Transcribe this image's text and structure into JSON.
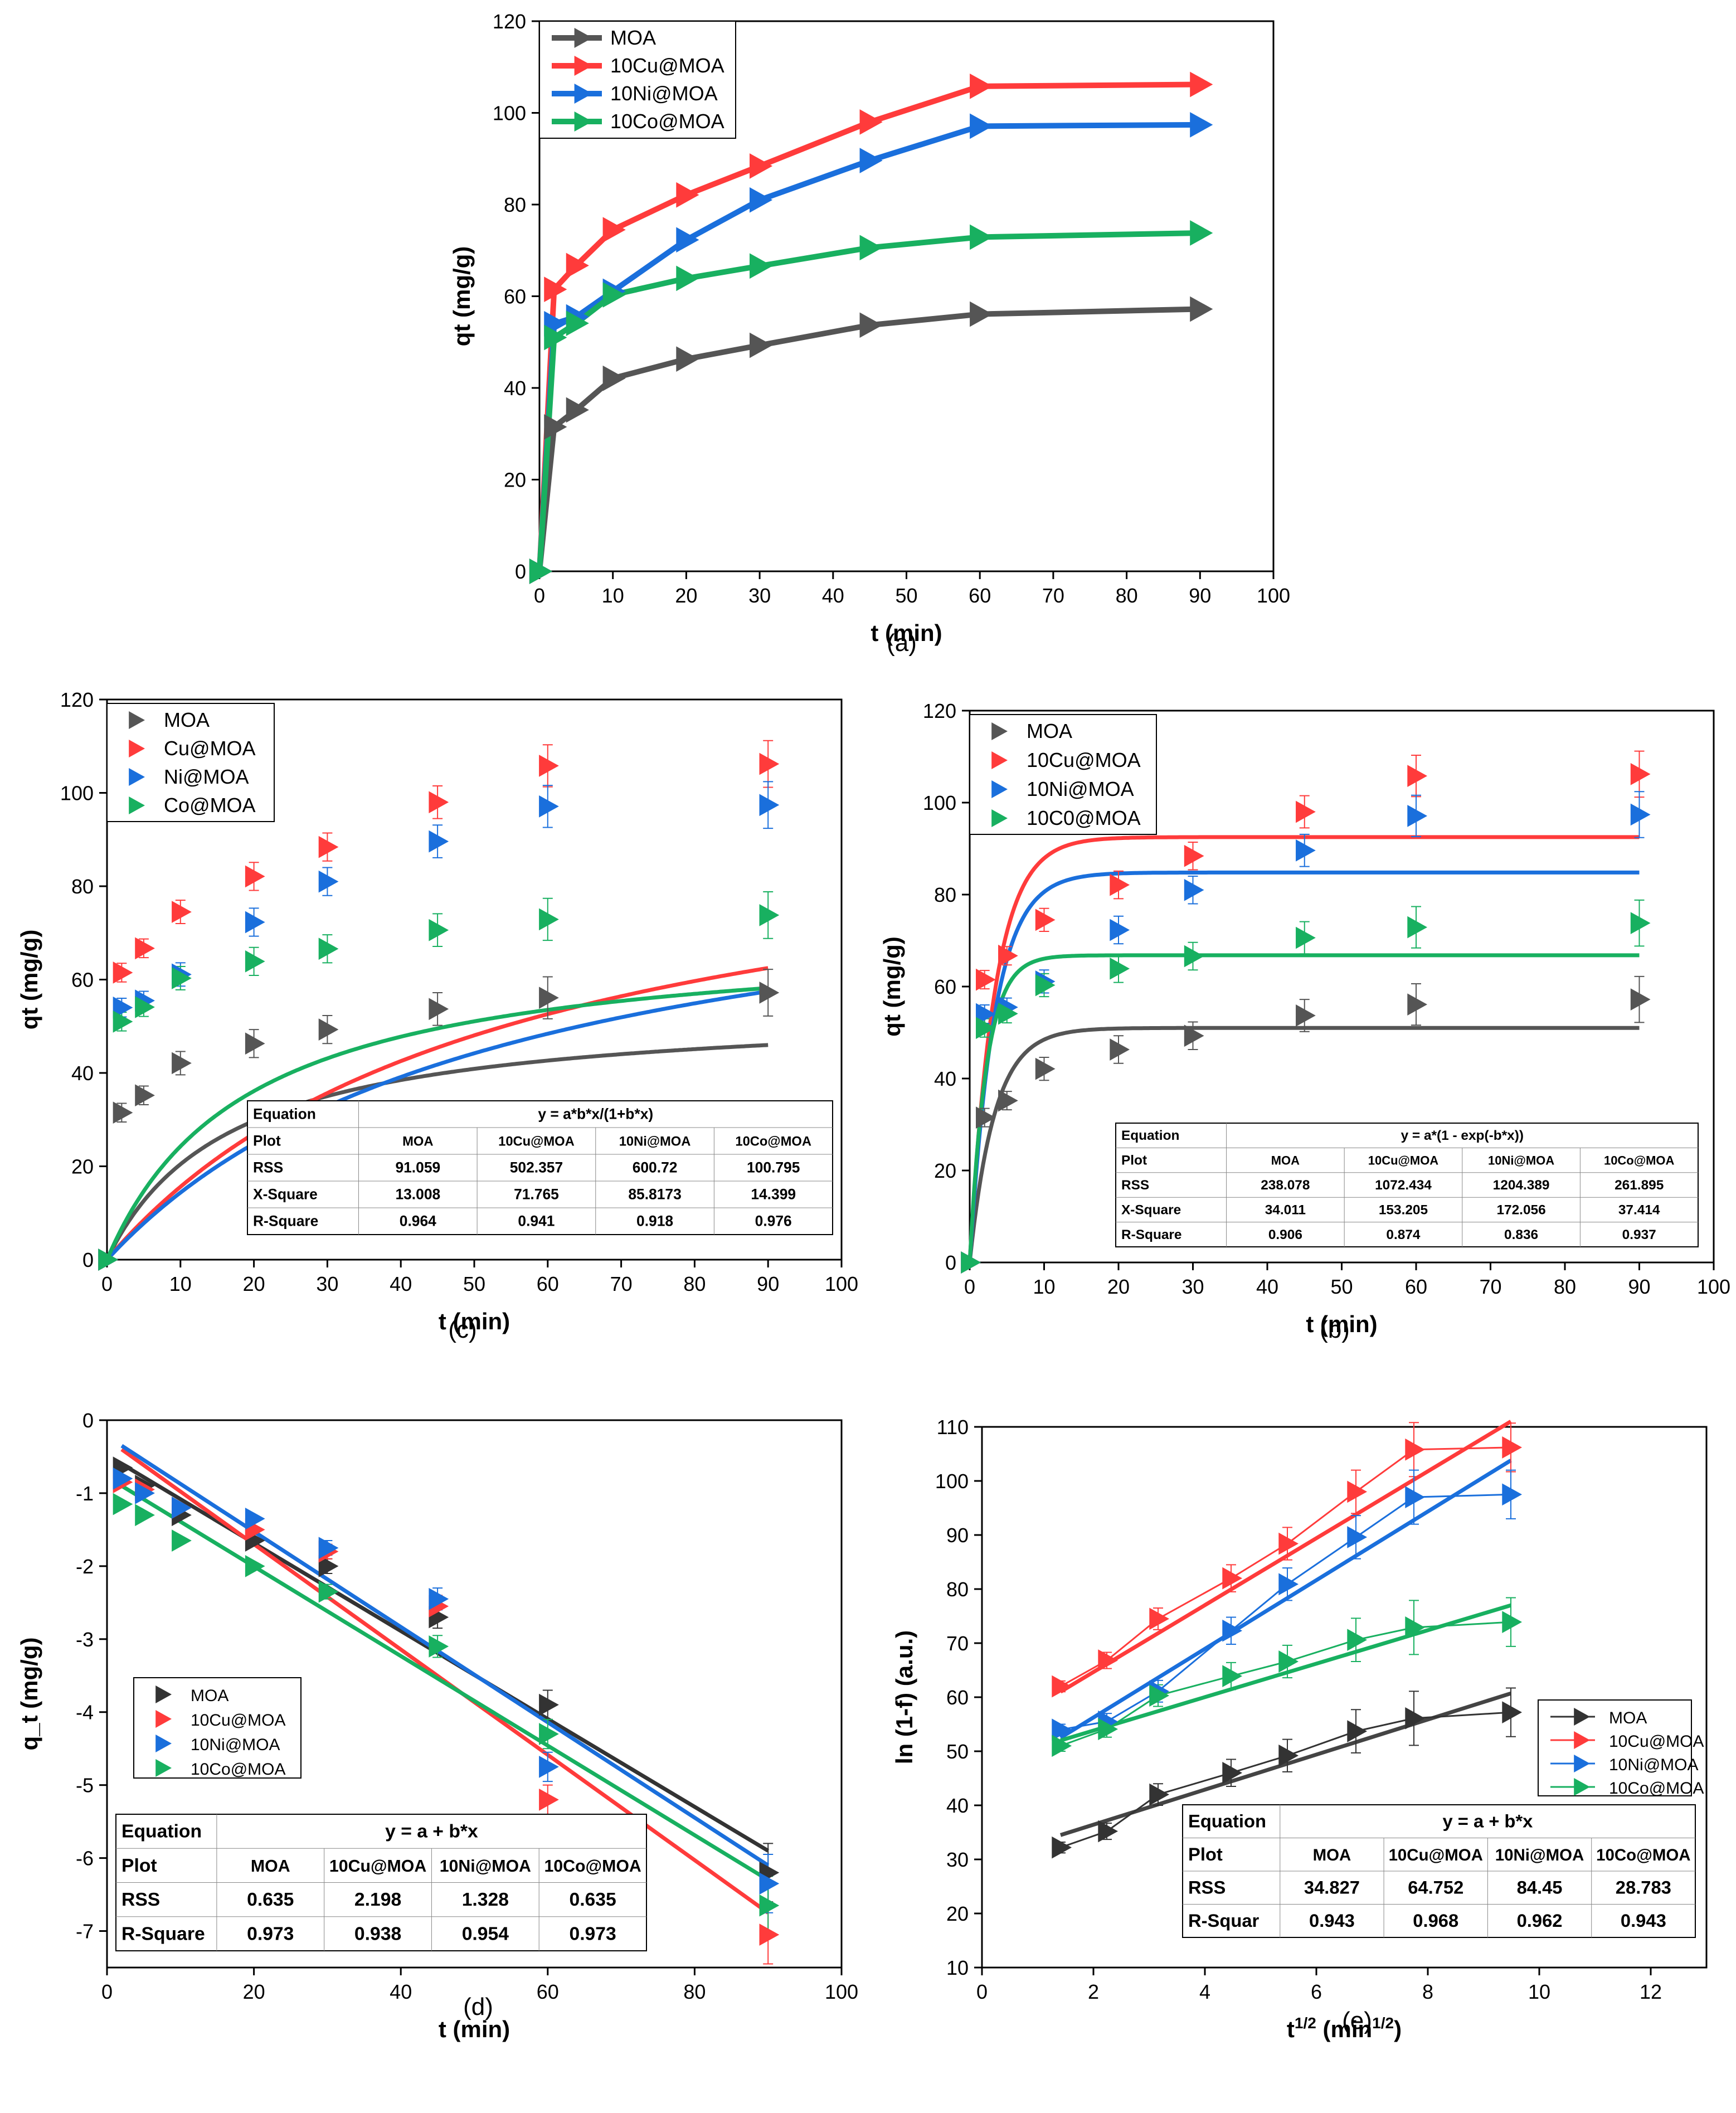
{
  "colors": {
    "MOA": "#555555",
    "Cu": "#ff3b3b",
    "Ni": "#1a6fdc",
    "Co": "#18b060"
  },
  "chart_data": [
    {
      "id": "a",
      "type": "line",
      "panel_label": "(a)",
      "title": "",
      "xlabel": "t (min)",
      "ylabel": "qt (mg/g)",
      "xlim": [
        0,
        100
      ],
      "ylim": [
        0,
        120
      ],
      "xticks": [
        0,
        10,
        20,
        30,
        40,
        50,
        60,
        70,
        80,
        90,
        100
      ],
      "xtick_labels": [
        "0",
        "10",
        "20",
        "30",
        "40",
        "50",
        "60",
        "70",
        "80",
        "90",
        "100"
      ],
      "yticks": [
        0,
        20,
        40,
        60,
        80,
        100,
        120
      ],
      "ytick_labels": [
        "0",
        "20",
        "40",
        "60",
        "80",
        "100",
        "120"
      ],
      "legend_position": "top-left",
      "x": [
        0,
        2,
        5,
        10,
        20,
        30,
        45,
        60,
        90
      ],
      "series": [
        {
          "name": "MOA",
          "color": "#555555",
          "values": [
            0,
            31.5,
            35.2,
            42.1,
            46.3,
            49.3,
            53.7,
            56.1,
            57.2
          ]
        },
        {
          "name": "10Cu@MOA",
          "color": "#ff3b3b",
          "values": [
            0,
            61.5,
            66.7,
            74.5,
            82.1,
            88.4,
            98.0,
            105.8,
            106.2
          ]
        },
        {
          "name": "10Ni@MOA",
          "color": "#1a6fdc",
          "values": [
            0,
            54.0,
            55.5,
            61.1,
            72.3,
            81.0,
            89.6,
            97.1,
            97.4
          ]
        },
        {
          "name": "10Co@MOA",
          "color": "#18b060",
          "values": [
            0,
            51.0,
            54.1,
            60.3,
            63.9,
            66.6,
            70.6,
            72.9,
            73.8
          ]
        }
      ]
    },
    {
      "id": "c",
      "type": "scatter",
      "panel_label": "(c)",
      "xlabel": "t (min)",
      "ylabel": "qt (mg/g)",
      "xlim": [
        0,
        100
      ],
      "ylim": [
        0,
        120
      ],
      "xticks": [
        0,
        10,
        20,
        30,
        40,
        50,
        60,
        70,
        80,
        90,
        100
      ],
      "xtick_labels": [
        "0",
        "10",
        "20",
        "30",
        "40",
        "50",
        "60",
        "70",
        "80",
        "90",
        "100"
      ],
      "yticks": [
        0,
        20,
        40,
        60,
        80,
        100,
        120
      ],
      "ytick_labels": [
        "0",
        "20",
        "40",
        "60",
        "80",
        "100",
        "120"
      ],
      "legend_position": "top-left",
      "x": [
        0,
        2,
        5,
        10,
        20,
        30,
        45,
        60,
        90
      ],
      "series": [
        {
          "name": "MOA",
          "color": "#555555",
          "values": [
            0,
            31.5,
            35.2,
            42.1,
            46.3,
            49.3,
            53.7,
            56.1,
            57.2
          ],
          "fit": {
            "model": "pso",
            "a": 54.5,
            "b": 0.06
          }
        },
        {
          "name": "Cu@MOA",
          "color": "#ff3b3b",
          "values": [
            0,
            61.5,
            66.7,
            74.5,
            82.1,
            88.4,
            98.0,
            105.8,
            106.2
          ],
          "fit": {
            "model": "pso",
            "a": 100.0,
            "b": 0.0185
          }
        },
        {
          "name": "Ni@MOA",
          "color": "#1a6fdc",
          "values": [
            0,
            54.0,
            55.5,
            61.1,
            72.3,
            81.0,
            89.6,
            97.1,
            97.4
          ],
          "fit": {
            "model": "pso",
            "a": 92.0,
            "b": 0.0185
          }
        },
        {
          "name": "Co@MOA",
          "color": "#18b060",
          "values": [
            0,
            51.0,
            54.1,
            60.3,
            63.9,
            66.6,
            70.6,
            72.9,
            73.8
          ],
          "fit": {
            "model": "pso",
            "a": 70.5,
            "b": 0.0525
          }
        }
      ],
      "error_bars": [
        0,
        2,
        2,
        2.5,
        3,
        3,
        3.5,
        4.5,
        5
      ],
      "table": {
        "equation_label": "Equation",
        "equation": "y = a*b*x/(1+b*x)",
        "header": [
          "Plot",
          "MOA",
          "10Cu@MOA",
          "10Ni@MOA",
          "10Co@MOA"
        ],
        "rows": [
          [
            "RSS",
            "91.059",
            "502.357",
            "600.72",
            "100.795"
          ],
          [
            "X-Square",
            "13.008",
            "71.765",
            "85.8173",
            "14.399"
          ],
          [
            "R-Square",
            "0.964",
            "0.941",
            "0.918",
            "0.976"
          ]
        ]
      }
    },
    {
      "id": "b",
      "type": "scatter",
      "panel_label": "(b)",
      "xlabel": "t (min)",
      "ylabel": "qt (mg/g)",
      "xlim": [
        0,
        100
      ],
      "ylim": [
        0,
        120
      ],
      "xticks": [
        0,
        10,
        20,
        30,
        40,
        50,
        60,
        70,
        80,
        90,
        100
      ],
      "xtick_labels": [
        "0",
        "10",
        "20",
        "30",
        "40",
        "50",
        "60",
        "70",
        "80",
        "90",
        "100"
      ],
      "yticks": [
        0,
        20,
        40,
        60,
        80,
        100,
        120
      ],
      "ytick_labels": [
        "0",
        "20",
        "40",
        "60",
        "80",
        "100",
        "120"
      ],
      "legend_position": "top-left",
      "x": [
        0,
        2,
        5,
        10,
        20,
        30,
        45,
        60,
        90
      ],
      "series": [
        {
          "name": "MOA",
          "color": "#555555",
          "values": [
            0,
            31.5,
            35.2,
            42.1,
            46.3,
            49.3,
            53.7,
            56.1,
            57.2
          ],
          "fit": {
            "model": "pfo",
            "a": 51.0,
            "b": 0.3
          }
        },
        {
          "name": "10Cu@MOA",
          "color": "#ff3b3b",
          "values": [
            0,
            61.5,
            66.7,
            74.5,
            82.1,
            88.4,
            98.0,
            105.8,
            106.2
          ],
          "fit": {
            "model": "pfo",
            "a": 92.5,
            "b": 0.3
          }
        },
        {
          "name": "10Ni@MOA",
          "color": "#1a6fdc",
          "values": [
            0,
            54.0,
            55.5,
            61.1,
            72.3,
            81.0,
            89.6,
            97.1,
            97.4
          ],
          "fit": {
            "model": "pfo",
            "a": 84.8,
            "b": 0.3
          }
        },
        {
          "name": "10C0@MOA",
          "color": "#18b060",
          "values": [
            0,
            51.0,
            54.1,
            60.3,
            63.9,
            66.6,
            70.6,
            72.9,
            73.8
          ],
          "fit": {
            "model": "pfo",
            "a": 66.8,
            "b": 0.45
          }
        }
      ],
      "error_bars": [
        0,
        2,
        2,
        2.5,
        3,
        3,
        3.5,
        4.5,
        5
      ],
      "table": {
        "equation_label": "Equation",
        "equation": "y = a*(1 - exp(-b*x))",
        "header": [
          "Plot",
          "MOA",
          "10Cu@MOA",
          "10Ni@MOA",
          "10Co@MOA"
        ],
        "rows": [
          [
            "RSS",
            "238.078",
            "1072.434",
            "1204.389",
            "261.895"
          ],
          [
            "X-Square",
            "34.011",
            "153.205",
            "172.056",
            "37.414"
          ],
          [
            "R-Square",
            "0.906",
            "0.874",
            "0.836",
            "0.937"
          ]
        ]
      }
    },
    {
      "id": "d",
      "type": "scatter",
      "panel_label": "(d)",
      "xlabel": "t (min)",
      "ylabel": "q_t (mg/g)",
      "xlim": [
        0,
        100
      ],
      "ylim": [
        -7.5,
        0
      ],
      "xticks": [
        0,
        20,
        40,
        60,
        80,
        100
      ],
      "xtick_labels": [
        "0",
        "20",
        "40",
        "60",
        "80",
        "100"
      ],
      "yticks": [
        0,
        -1,
        -2,
        -3,
        -4,
        -5,
        -6,
        -7
      ],
      "ytick_labels": [
        "0",
        "-1",
        "-2",
        "-3",
        "-4",
        "-5",
        "-6",
        "-7"
      ],
      "legend_position": "middle-left",
      "x": [
        2,
        5,
        10,
        20,
        30,
        45,
        60,
        90
      ],
      "series": [
        {
          "name": "MOA",
          "color": "#333333",
          "values": [
            -0.65,
            -0.9,
            -1.3,
            -1.65,
            -2.0,
            -2.7,
            -3.9,
            -6.2
          ],
          "fit": {
            "model": "linear",
            "x0": 2,
            "x1": 90,
            "y0": -0.6,
            "y1": -5.9
          }
        },
        {
          "name": "10Cu@MOA",
          "color": "#ff3b3b",
          "values": [
            -0.85,
            -0.95,
            -1.2,
            -1.5,
            -1.8,
            -2.55,
            -5.2,
            -7.05
          ],
          "fit": {
            "model": "linear",
            "x0": 2,
            "x1": 90,
            "y0": -0.4,
            "y1": -6.75
          }
        },
        {
          "name": "10Ni@MOA",
          "color": "#1a6fdc",
          "values": [
            -0.8,
            -1.0,
            -1.2,
            -1.35,
            -1.75,
            -2.45,
            -4.75,
            -6.35
          ],
          "fit": {
            "model": "linear",
            "x0": 2,
            "x1": 90,
            "y0": -0.35,
            "y1": -6.1
          }
        },
        {
          "name": "10Co@MOA",
          "color": "#18b060",
          "values": [
            -1.15,
            -1.3,
            -1.65,
            -2.0,
            -2.35,
            -3.1,
            -4.3,
            -6.65
          ],
          "fit": {
            "model": "linear",
            "x0": 2,
            "x1": 90,
            "y0": -0.9,
            "y1": -6.3
          }
        }
      ],
      "error_bars": [
        0,
        0,
        0,
        0,
        0.1,
        0.15,
        0.2,
        0.4
      ],
      "table": {
        "equation_label": "Equation",
        "equation": "y = a + b*x",
        "header": [
          "Plot",
          "MOA",
          "10Cu@MOA",
          "10Ni@MOA",
          "10Co@MOA"
        ],
        "rows": [
          [
            "RSS",
            "0.635",
            "2.198",
            "1.328",
            "0.635"
          ],
          [
            "R-Square",
            "0.973",
            "0.938",
            "0.954",
            "0.973"
          ]
        ]
      }
    },
    {
      "id": "e",
      "type": "line",
      "panel_label": "(e)",
      "xlabel": "t",
      "xlabel_sup": "1/2",
      "xlabel_unit": " (min",
      "xlabel_unit_sup": "1/2",
      "xlabel_close": ")",
      "ylabel": "ln (1-f) (a.u.)",
      "xlim": [
        0,
        13
      ],
      "ylim": [
        10,
        110
      ],
      "xticks": [
        0,
        2,
        4,
        6,
        8,
        10,
        12
      ],
      "xtick_labels": [
        "0",
        "2",
        "4",
        "6",
        "8",
        "10",
        "12"
      ],
      "yticks": [
        10,
        20,
        30,
        40,
        50,
        60,
        70,
        80,
        90,
        100,
        110
      ],
      "ytick_labels": [
        "10",
        "20",
        "30",
        "40",
        "50",
        "60",
        "70",
        "80",
        "90",
        "100",
        "110"
      ],
      "legend_position": "middle-right",
      "x": [
        1.41,
        2.24,
        3.16,
        4.47,
        5.48,
        6.71,
        7.75,
        9.49
      ],
      "series": [
        {
          "name": "MOA",
          "color": "#333333",
          "values": [
            32.2,
            35.2,
            42.0,
            46.0,
            49.2,
            53.7,
            56.1,
            57.2
          ],
          "fit": {
            "model": "linear",
            "x0": 1.41,
            "x1": 9.49,
            "y0": 34.5,
            "y1": 60.7
          }
        },
        {
          "name": "10Cu@MOA",
          "color": "#ff3b3b",
          "values": [
            62.0,
            66.8,
            74.5,
            82.0,
            88.4,
            98.0,
            105.8,
            106.2
          ],
          "fit": {
            "model": "linear",
            "x0": 1.41,
            "x1": 9.49,
            "y0": 61.0,
            "y1": 111.0
          }
        },
        {
          "name": "10Ni@MOA",
          "color": "#1a6fdc",
          "values": [
            54.0,
            55.5,
            61.1,
            72.3,
            80.9,
            89.6,
            97.0,
            97.5
          ],
          "fit": {
            "model": "linear",
            "x0": 1.41,
            "x1": 9.49,
            "y0": 52.5,
            "y1": 103.8
          }
        },
        {
          "name": "10Co@MOA",
          "color": "#18b060",
          "values": [
            51.0,
            54.1,
            60.3,
            63.9,
            66.6,
            70.6,
            72.9,
            73.9
          ],
          "fit": {
            "model": "linear",
            "x0": 1.41,
            "x1": 9.49,
            "y0": 52.0,
            "y1": 77.0
          }
        }
      ],
      "error_bars": [
        1,
        1.5,
        2,
        2.5,
        3,
        4,
        5,
        4.5
      ],
      "table": {
        "equation_label": "Equation",
        "equation": "y = a + b*x",
        "header": [
          "Plot",
          "MOA",
          "10Cu@MOA",
          "10Ni@MOA",
          "10Co@MOA"
        ],
        "rows": [
          [
            "RSS",
            "34.827",
            "64.752",
            "84.45",
            "28.783"
          ],
          [
            "R-Squar",
            "0.943",
            "0.968",
            "0.962",
            "0.943"
          ]
        ]
      }
    }
  ]
}
